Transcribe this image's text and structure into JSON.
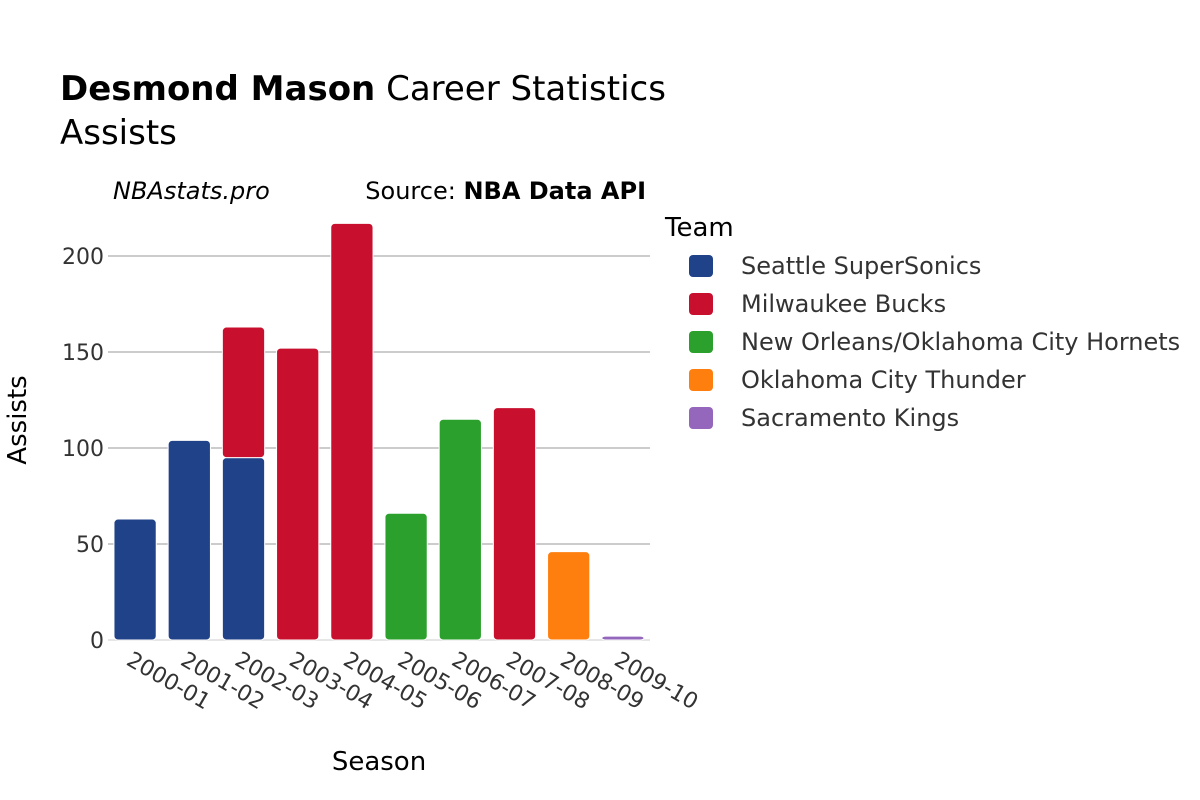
{
  "header": {
    "title_player": "Desmond Mason",
    "title_rest": " Career Statistics",
    "subtitle": "Assists",
    "watermark": "NBAstats.pro",
    "source_prefix": "Source: ",
    "source_name": "NBA Data API"
  },
  "legend": {
    "title": "Team"
  },
  "chart_data": {
    "type": "bar",
    "stacked": true,
    "xlabel": "Season",
    "ylabel": "Assists",
    "ylim": [
      0,
      225
    ],
    "yticks": [
      0,
      50,
      100,
      150,
      200
    ],
    "grid": true,
    "legend_position": "right",
    "categories": [
      "2000-01",
      "2001-02",
      "2002-03",
      "2003-04",
      "2004-05",
      "2005-06",
      "2006-07",
      "2007-08",
      "2008-09",
      "2009-10"
    ],
    "series": [
      {
        "name": "Seattle SuperSonics",
        "color": "#1f4288",
        "values": [
          63,
          104,
          95,
          0,
          0,
          0,
          0,
          0,
          0,
          0
        ]
      },
      {
        "name": "Milwaukee Bucks",
        "color": "#c8102e",
        "values": [
          0,
          0,
          68,
          152,
          217,
          0,
          0,
          121,
          0,
          0
        ]
      },
      {
        "name": "New Orleans/Oklahoma City Hornets",
        "color": "#2ca02c",
        "values": [
          0,
          0,
          0,
          0,
          0,
          66,
          115,
          0,
          0,
          0
        ]
      },
      {
        "name": "Oklahoma City Thunder",
        "color": "#ff7f0e",
        "values": [
          0,
          0,
          0,
          0,
          0,
          0,
          0,
          0,
          46,
          0
        ]
      },
      {
        "name": "Sacramento Kings",
        "color": "#9467bd",
        "values": [
          0,
          0,
          0,
          0,
          0,
          0,
          0,
          0,
          0,
          2
        ]
      }
    ]
  }
}
